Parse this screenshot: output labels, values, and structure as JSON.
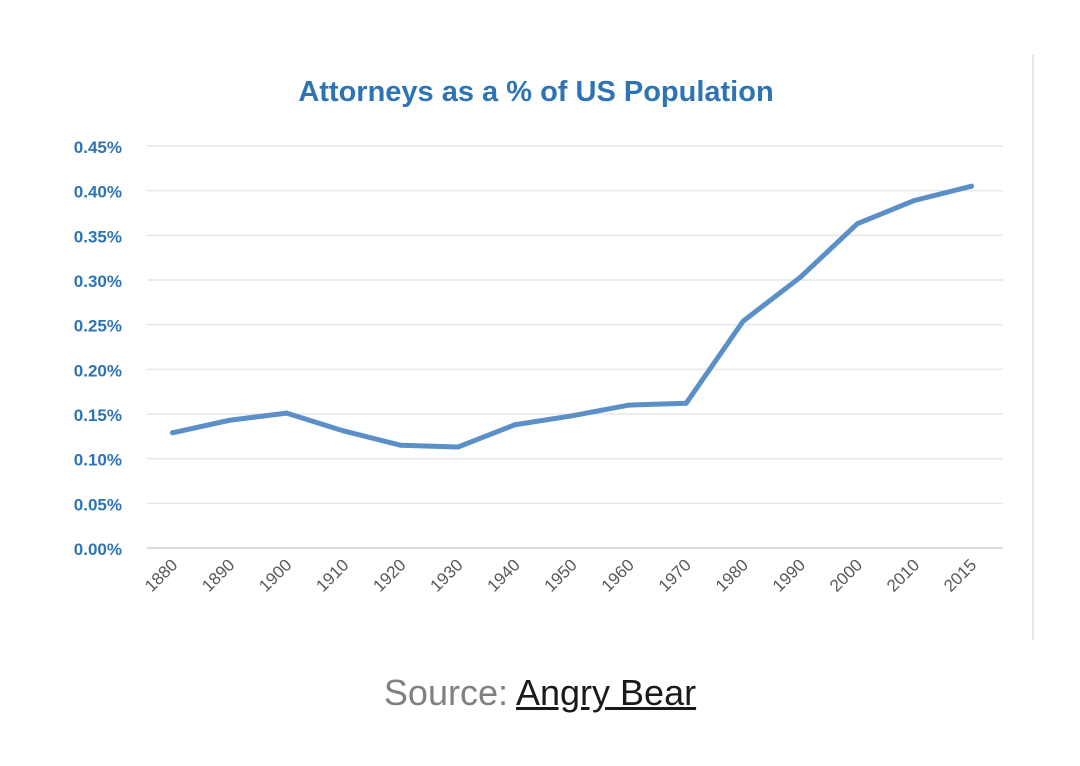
{
  "chart_data": {
    "type": "line",
    "title": "Attorneys as a % of US Population",
    "xlabel": "",
    "ylabel": "",
    "categories": [
      "1880",
      "1890",
      "1900",
      "1910",
      "1920",
      "1930",
      "1940",
      "1950",
      "1960",
      "1970",
      "1980",
      "1990",
      "2000",
      "2010",
      "2015"
    ],
    "series": [
      {
        "name": "Attorneys as % of population",
        "values": [
          0.129,
          0.143,
          0.151,
          0.131,
          0.115,
          0.113,
          0.138,
          0.148,
          0.16,
          0.162,
          0.254,
          0.303,
          0.363,
          0.389,
          0.405
        ]
      }
    ],
    "yticks": [
      "0.00%",
      "0.05%",
      "0.10%",
      "0.15%",
      "0.20%",
      "0.25%",
      "0.30%",
      "0.35%",
      "0.40%",
      "0.45%"
    ],
    "ylim": [
      0,
      0.45
    ],
    "grid": true,
    "colors": {
      "line": "#5b8fc7",
      "title": "#2e74b5",
      "ytick": "#2e74b5",
      "xtick": "#595959",
      "grid": "#e6e6e6"
    }
  },
  "source": {
    "prefix": "Source: ",
    "link": "Angry Bear"
  }
}
